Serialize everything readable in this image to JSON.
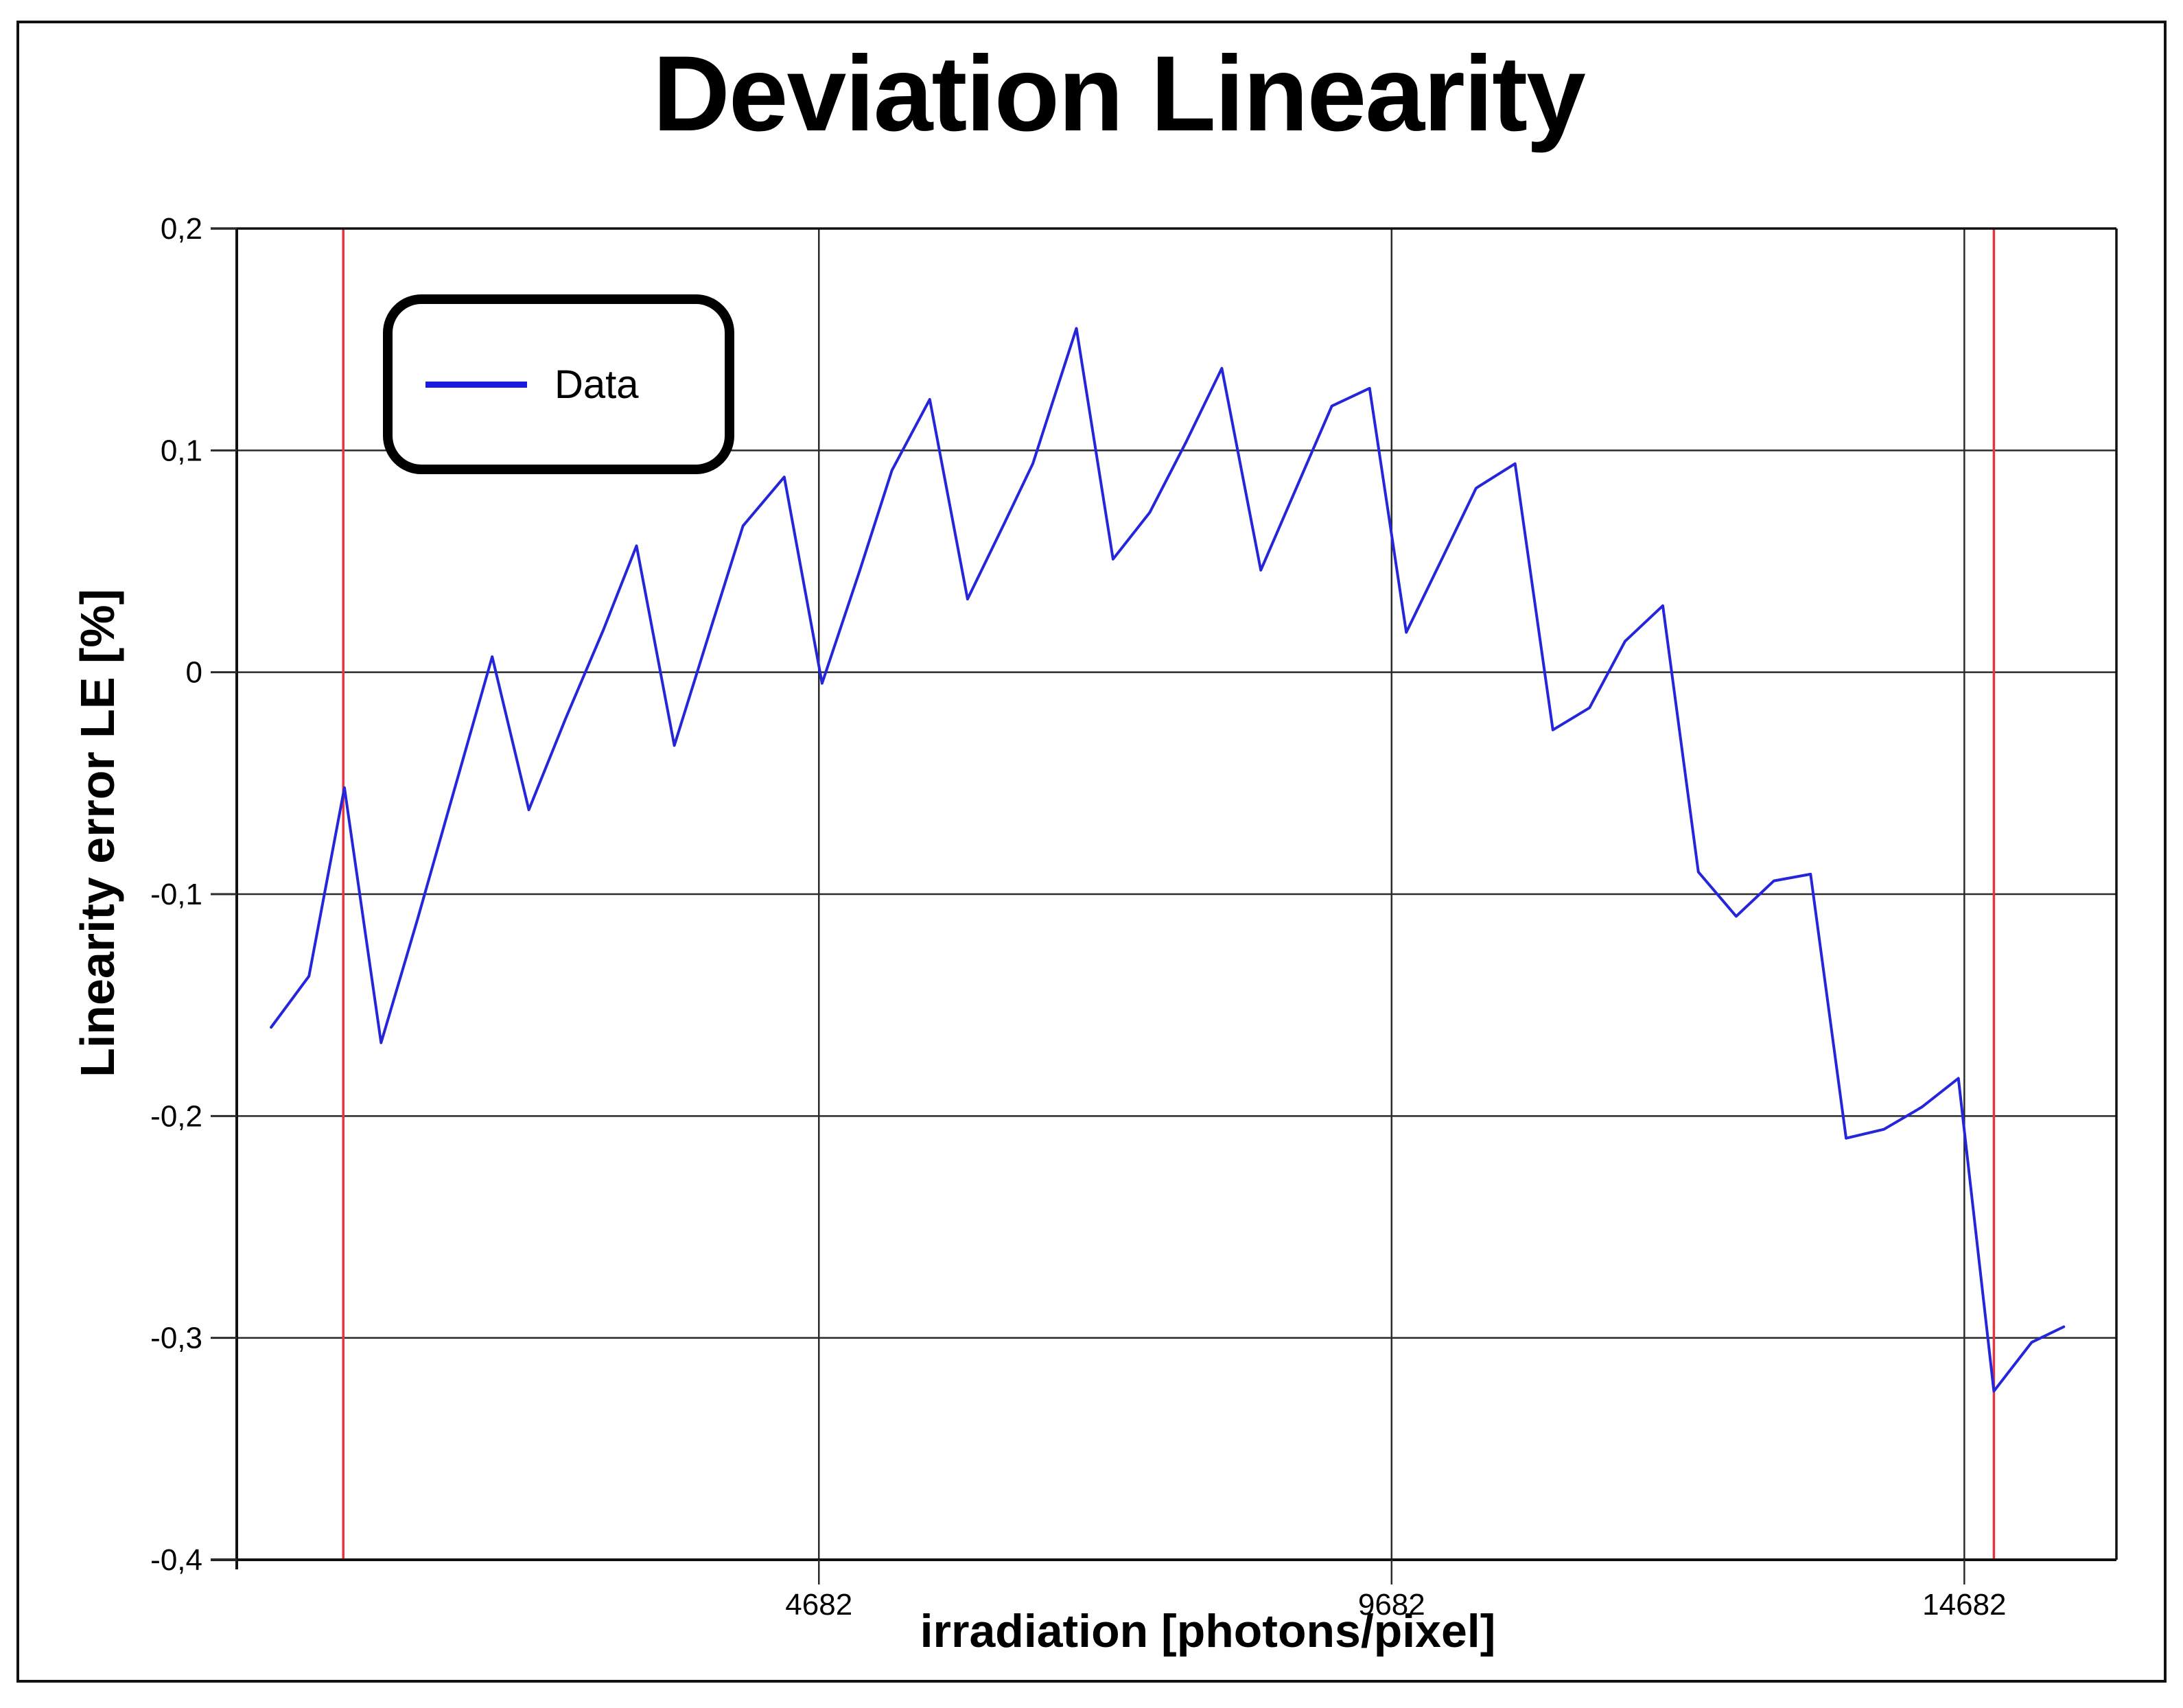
{
  "chart_data": {
    "type": "line",
    "title": "Deviation Linearity",
    "xlabel": "irradiation [photons/pixel]",
    "ylabel": "Linearity error LE [%]",
    "xlim": [
      -400,
      16010
    ],
    "ylim": [
      -0.4,
      0.2
    ],
    "grid": true,
    "x_ticks": [
      4682,
      9682,
      14682
    ],
    "x_tick_labels": [
      "4682",
      "9682",
      "14682"
    ],
    "y_ticks": [
      0.2,
      0.1,
      0,
      -0.1,
      -0.2,
      -0.3,
      -0.4
    ],
    "y_tick_labels": [
      "0,2",
      "0,1",
      "0",
      "-0,1",
      "-0,2",
      "-0,3",
      "-0,4"
    ],
    "legend": {
      "label": "Data",
      "position": "top-left"
    },
    "series": [
      {
        "name": "Data",
        "color": "#2525DA",
        "x": [
          -100,
          230,
          540,
          860,
          1180,
          1510,
          1830,
          2150,
          2470,
          2800,
          3090,
          3420,
          3740,
          4020,
          4380,
          4710,
          5040,
          5320,
          5650,
          5980,
          6300,
          6550,
          6930,
          7250,
          7570,
          7890,
          8200,
          8540,
          8850,
          9160,
          9490,
          9810,
          10130,
          10420,
          10760,
          11090,
          11410,
          11720,
          12050,
          12360,
          12690,
          13020,
          13340,
          13650,
          13980,
          14310,
          14630,
          14940,
          15270,
          15550
        ],
        "y": [
          -0.16,
          -0.137,
          -0.052,
          -0.167,
          -0.111,
          -0.051,
          0.007,
          -0.062,
          -0.021,
          0.019,
          0.057,
          -0.033,
          0.02,
          0.066,
          0.088,
          -0.005,
          0.046,
          0.091,
          0.123,
          0.033,
          0.067,
          0.094,
          0.155,
          0.051,
          0.072,
          0.104,
          0.137,
          0.046,
          0.083,
          0.12,
          0.128,
          0.018,
          0.052,
          0.083,
          0.094,
          -0.026,
          -0.016,
          0.014,
          0.03,
          -0.09,
          -0.11,
          -0.094,
          -0.091,
          -0.21,
          -0.206,
          -0.196,
          -0.183,
          -0.324,
          -0.302,
          -0.295
        ]
      }
    ],
    "reference_lines": {
      "color": "#E53540",
      "x_values": [
        530,
        14940
      ]
    },
    "colors": {
      "grid": "#2b2b2b",
      "axis": "#111111",
      "background": "#ffffff"
    }
  }
}
